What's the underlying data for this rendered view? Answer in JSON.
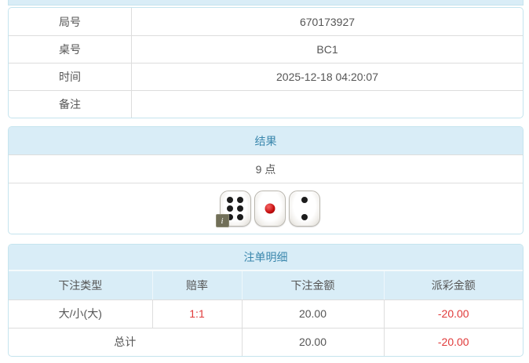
{
  "info_table": {
    "rows": [
      {
        "label": "局号",
        "value": "670173927"
      },
      {
        "label": "桌号",
        "value": "BC1"
      },
      {
        "label": "时间",
        "value": "2025-12-18 04:20:07"
      },
      {
        "label": "备注",
        "value": ""
      }
    ]
  },
  "result_panel": {
    "title": "结果",
    "points": "9 点",
    "dice": [
      6,
      1,
      2
    ],
    "info_icon": "i"
  },
  "bets_panel": {
    "title": "注单明细",
    "columns": [
      "下注类型",
      "赔率",
      "下注金额",
      "派彩金额"
    ],
    "rows": [
      {
        "type": "大/小(大)",
        "odds": "1:1",
        "bet": "20.00",
        "payout": "-20.00"
      }
    ],
    "total": {
      "label": "总计",
      "bet": "20.00",
      "payout": "-20.00"
    }
  },
  "colors": {
    "header_bg": "#d9edf7",
    "header_text": "#3a87ad",
    "panel_border": "#c5e4ee",
    "inner_border": "#dddddd",
    "body_text": "#555555",
    "negative": "#e03a3a",
    "die_pip_black": "#1c1c1c",
    "die_pip_red": "#c40c0c"
  }
}
